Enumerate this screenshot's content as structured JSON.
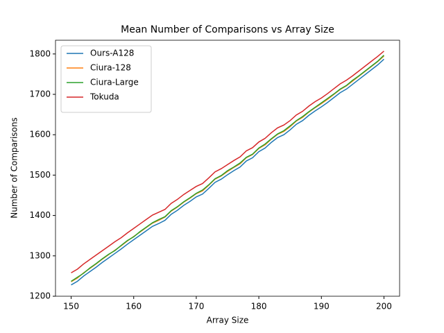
{
  "chart_data": {
    "type": "line",
    "title": "Mean Number of Comparisons vs Array Size",
    "x_label": "Array Size",
    "y_label": "Number of Comparisons",
    "x": [
      150,
      151,
      152,
      153,
      154,
      155,
      156,
      157,
      158,
      159,
      160,
      161,
      162,
      163,
      164,
      165,
      166,
      167,
      168,
      169,
      170,
      171,
      172,
      173,
      174,
      175,
      176,
      177,
      178,
      179,
      180,
      181,
      182,
      183,
      184,
      185,
      186,
      187,
      188,
      189,
      190,
      191,
      192,
      193,
      194,
      195,
      196,
      197,
      198,
      199,
      200
    ],
    "series": [
      {
        "name": "Ours-A128",
        "color": "#1f77b4",
        "values": [
          1228,
          1237,
          1250,
          1261,
          1272,
          1284,
          1295,
          1306,
          1317,
          1329,
          1340,
          1351,
          1362,
          1373,
          1380,
          1388,
          1403,
          1413,
          1425,
          1435,
          1446,
          1453,
          1467,
          1482,
          1490,
          1501,
          1511,
          1520,
          1535,
          1543,
          1558,
          1567,
          1581,
          1593,
          1600,
          1612,
          1626,
          1635,
          1648,
          1659,
          1669,
          1680,
          1692,
          1704,
          1713,
          1725,
          1737,
          1749,
          1761,
          1773,
          1787
        ]
      },
      {
        "name": "Ciura-128",
        "color": "#ff7f0e",
        "values": [
          1236,
          1245,
          1258,
          1269,
          1280,
          1292,
          1303,
          1314,
          1325,
          1337,
          1348,
          1359,
          1370,
          1381,
          1388,
          1396,
          1411,
          1421,
          1433,
          1443,
          1454,
          1461,
          1475,
          1490,
          1498,
          1509,
          1519,
          1528,
          1543,
          1551,
          1566,
          1575,
          1589,
          1601,
          1608,
          1620,
          1634,
          1643,
          1656,
          1667,
          1677,
          1688,
          1700,
          1712,
          1721,
          1733,
          1745,
          1757,
          1769,
          1781,
          1795
        ]
      },
      {
        "name": "Ciura-Large",
        "color": "#2ca02c",
        "values": [
          1237,
          1247,
          1257,
          1270,
          1281,
          1293,
          1304,
          1313,
          1326,
          1338,
          1347,
          1360,
          1371,
          1382,
          1390,
          1397,
          1412,
          1422,
          1434,
          1444,
          1455,
          1463,
          1476,
          1491,
          1499,
          1511,
          1520,
          1530,
          1544,
          1552,
          1567,
          1577,
          1590,
          1602,
          1610,
          1622,
          1635,
          1645,
          1657,
          1668,
          1679,
          1690,
          1701,
          1713,
          1722,
          1735,
          1746,
          1758,
          1770,
          1782,
          1797
        ]
      },
      {
        "name": "Tokuda",
        "color": "#d62728",
        "values": [
          1258,
          1267,
          1280,
          1291,
          1302,
          1313,
          1324,
          1335,
          1345,
          1357,
          1368,
          1379,
          1390,
          1401,
          1408,
          1415,
          1430,
          1440,
          1452,
          1462,
          1472,
          1479,
          1493,
          1508,
          1516,
          1526,
          1536,
          1545,
          1560,
          1568,
          1582,
          1591,
          1605,
          1617,
          1624,
          1635,
          1649,
          1658,
          1671,
          1682,
          1691,
          1702,
          1714,
          1726,
          1735,
          1746,
          1758,
          1770,
          1782,
          1794,
          1807
        ]
      }
    ],
    "xlim": [
      147.5,
      202.5
    ],
    "ylim": [
      1200,
      1834
    ],
    "xticks": [
      150,
      160,
      170,
      180,
      190,
      200
    ],
    "yticks": [
      1200,
      1300,
      1400,
      1500,
      1600,
      1700,
      1800
    ],
    "legend": "upper left"
  }
}
